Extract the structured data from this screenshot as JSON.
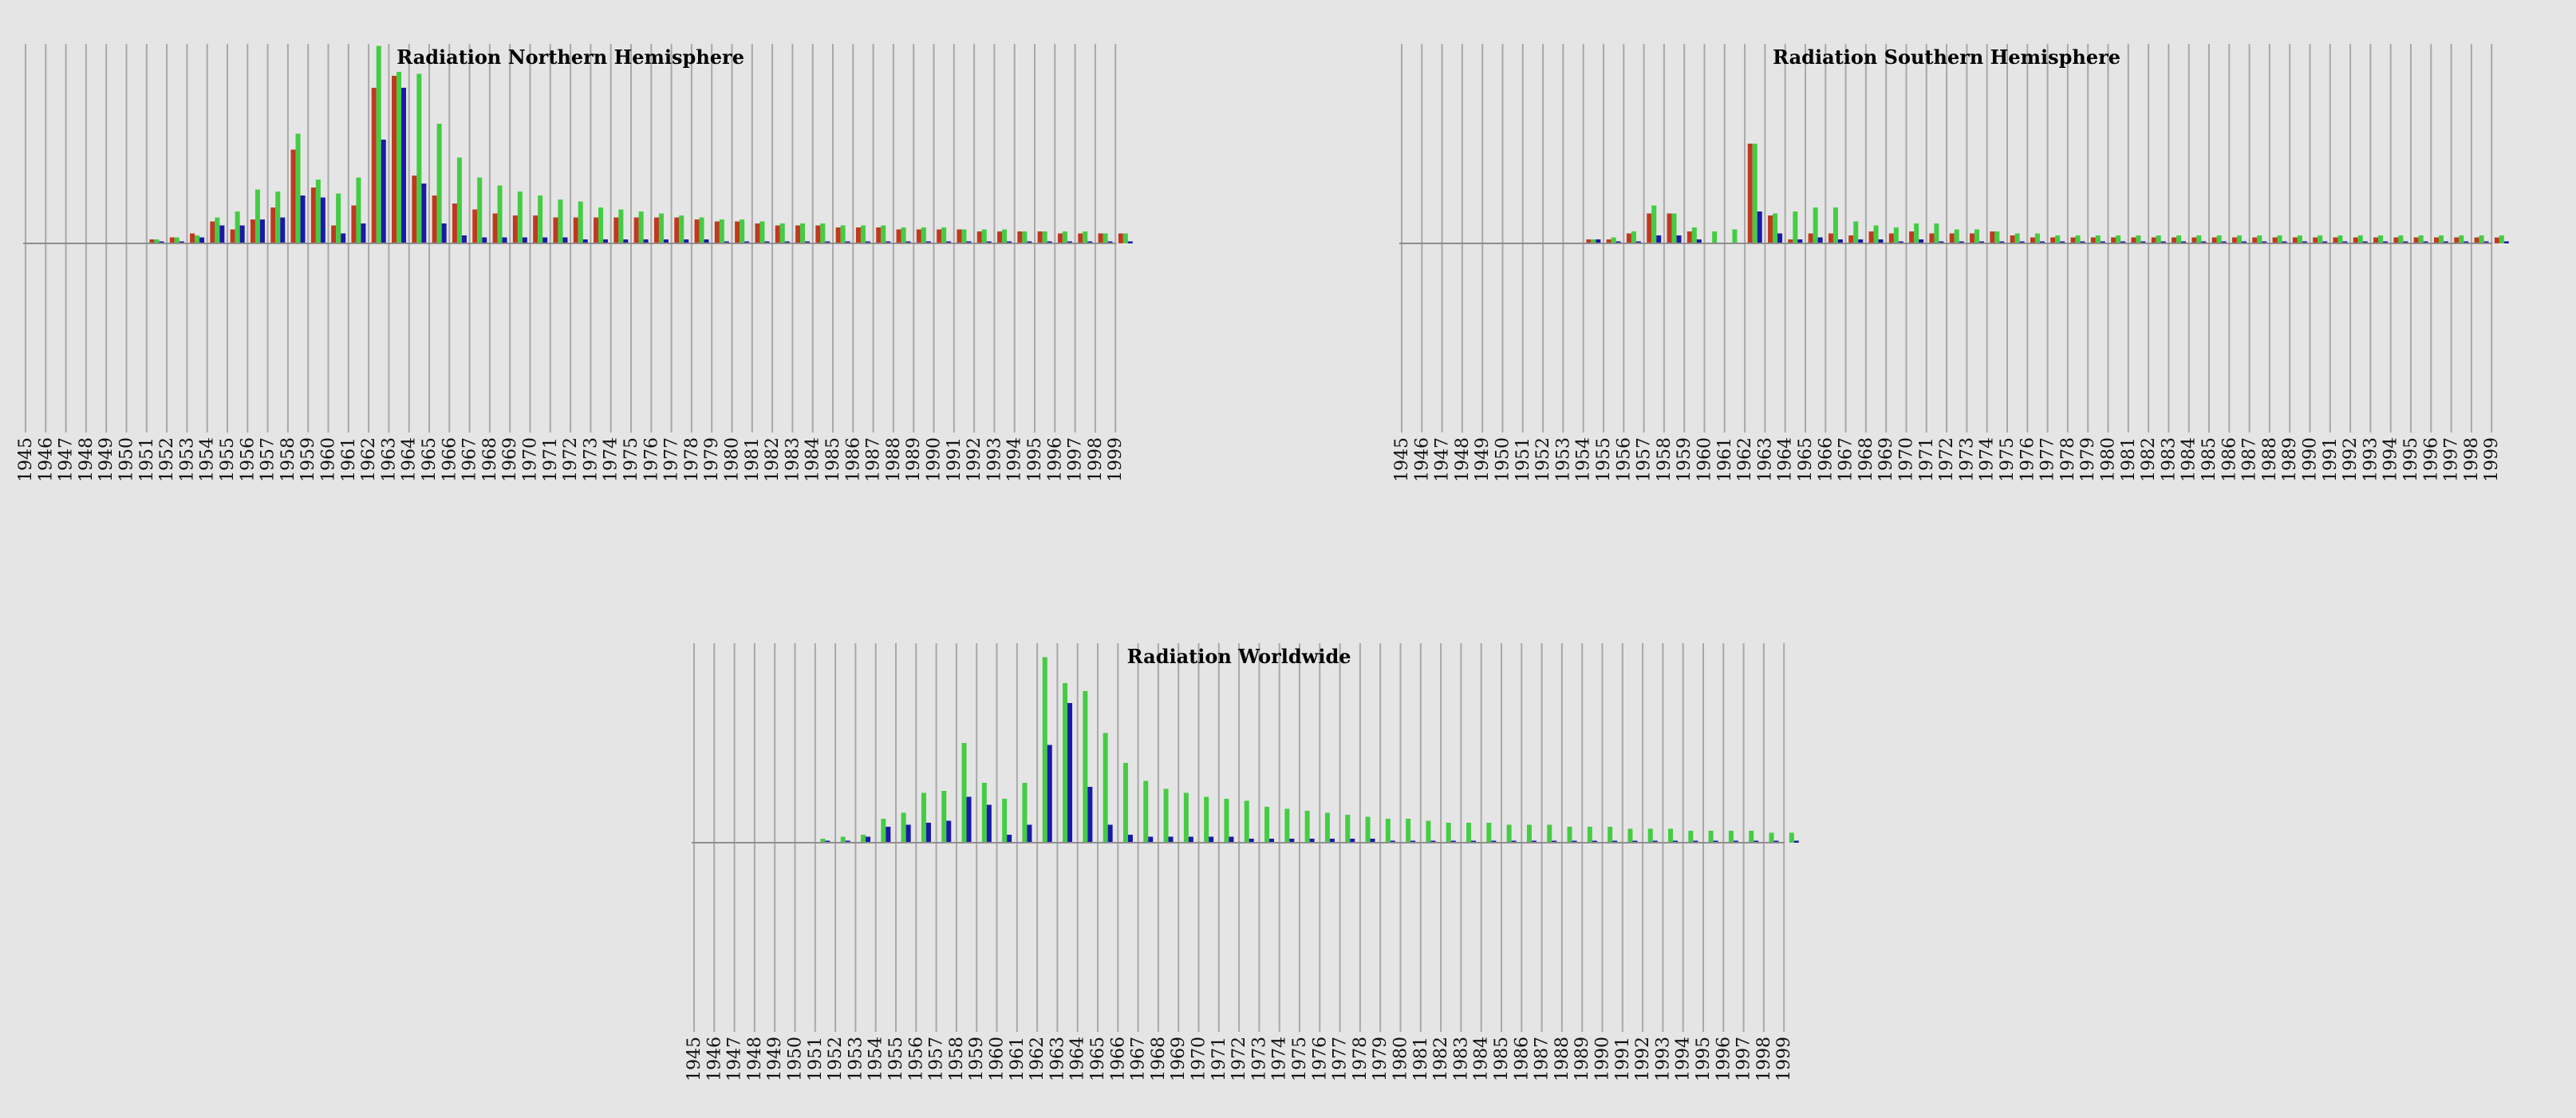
{
  "colors": {
    "background": "#e5e5e5",
    "series_red": "#c0391f",
    "series_green": "#44cc44",
    "series_blue": "#1a1aa8",
    "grid": "#a8a8a8"
  },
  "chart_data": [
    {
      "id": "north",
      "type": "bar",
      "title": "Radiation Northern Hemisphere",
      "xlabel": "",
      "ylabel": "",
      "grid": true,
      "legend": "none",
      "ylim": [
        -100,
        100
      ],
      "categories": [
        "1945",
        "1946",
        "1947",
        "1948",
        "1949",
        "1950",
        "1951",
        "1952",
        "1953",
        "1954",
        "1955",
        "1956",
        "1957",
        "1958",
        "1959",
        "1960",
        "1961",
        "1962",
        "1963",
        "1964",
        "1965",
        "1966",
        "1967",
        "1968",
        "1969",
        "1970",
        "1971",
        "1972",
        "1973",
        "1974",
        "1975",
        "1976",
        "1977",
        "1978",
        "1979",
        "1980",
        "1981",
        "1982",
        "1983",
        "1984",
        "1985",
        "1986",
        "1987",
        "1988",
        "1989",
        "1990",
        "1991",
        "1992",
        "1993",
        "1994",
        "1995",
        "1996",
        "1997",
        "1998",
        "1999"
      ],
      "series": [
        {
          "color": "#c0391f",
          "values": [
            0,
            0,
            0,
            0,
            0,
            0,
            2,
            3,
            5,
            11,
            7,
            12,
            18,
            47,
            28,
            9,
            19,
            78,
            84,
            34,
            24,
            20,
            17,
            15,
            14,
            14,
            13,
            13,
            13,
            13,
            13,
            13,
            13,
            12,
            11,
            11,
            10,
            9,
            9,
            9,
            8,
            8,
            8,
            7,
            7,
            7,
            7,
            6,
            6,
            6,
            6,
            5,
            5,
            5,
            5
          ]
        },
        {
          "color": "#44cc44",
          "values": [
            0,
            0,
            0,
            0,
            0,
            0,
            2,
            3,
            4,
            13,
            16,
            27,
            26,
            55,
            32,
            25,
            33,
            99,
            86,
            85,
            60,
            43,
            33,
            29,
            26,
            24,
            22,
            21,
            18,
            17,
            16,
            15,
            14,
            13,
            12,
            12,
            11,
            10,
            10,
            10,
            9,
            9,
            9,
            8,
            8,
            8,
            7,
            7,
            7,
            6,
            6,
            6,
            6,
            5,
            5
          ]
        },
        {
          "color": "#1a1aa8",
          "values": [
            0,
            0,
            0,
            0,
            0,
            0,
            1,
            1,
            3,
            9,
            9,
            12,
            13,
            24,
            23,
            5,
            10,
            52,
            78,
            30,
            10,
            4,
            3,
            3,
            3,
            3,
            3,
            2,
            2,
            2,
            2,
            2,
            2,
            2,
            1,
            1,
            1,
            1,
            1,
            1,
            1,
            1,
            1,
            1,
            1,
            1,
            1,
            1,
            1,
            1,
            1,
            1,
            1,
            1,
            1
          ]
        }
      ]
    },
    {
      "id": "south",
      "type": "bar",
      "title": "Radiation Southern Hemisphere",
      "xlabel": "",
      "ylabel": "",
      "grid": true,
      "legend": "none",
      "ylim": [
        -100,
        100
      ],
      "categories": [
        "1945",
        "1946",
        "1947",
        "1948",
        "1949",
        "1950",
        "1951",
        "1952",
        "1953",
        "1954",
        "1955",
        "1956",
        "1957",
        "1958",
        "1959",
        "1960",
        "1961",
        "1962",
        "1963",
        "1964",
        "1965",
        "1966",
        "1967",
        "1968",
        "1969",
        "1970",
        "1971",
        "1972",
        "1973",
        "1974",
        "1975",
        "1976",
        "1977",
        "1978",
        "1979",
        "1980",
        "1981",
        "1982",
        "1983",
        "1984",
        "1985",
        "1986",
        "1987",
        "1988",
        "1989",
        "1990",
        "1991",
        "1992",
        "1993",
        "1994",
        "1995",
        "1996",
        "1997",
        "1998",
        "1999"
      ],
      "series": [
        {
          "color": "#c0391f",
          "values": [
            0,
            0,
            0,
            0,
            0,
            0,
            0,
            0,
            0,
            2,
            2,
            5,
            15,
            15,
            6,
            0,
            0,
            50,
            14,
            2,
            5,
            5,
            4,
            6,
            5,
            6,
            5,
            5,
            5,
            6,
            4,
            3,
            3,
            3,
            3,
            3,
            3,
            3,
            3,
            3,
            3,
            3,
            3,
            3,
            3,
            3,
            3,
            3,
            3,
            3,
            3,
            3,
            3,
            3,
            3
          ]
        },
        {
          "color": "#44cc44",
          "values": [
            0,
            0,
            0,
            0,
            0,
            0,
            0,
            0,
            0,
            2,
            3,
            6,
            19,
            15,
            8,
            6,
            7,
            50,
            15,
            16,
            18,
            18,
            11,
            9,
            8,
            10,
            10,
            7,
            7,
            6,
            5,
            5,
            4,
            4,
            4,
            4,
            4,
            4,
            4,
            4,
            4,
            4,
            4,
            4,
            4,
            4,
            4,
            4,
            4,
            4,
            4,
            4,
            4,
            4,
            4
          ]
        },
        {
          "color": "#1a1aa8",
          "values": [
            0,
            0,
            0,
            0,
            0,
            0,
            0,
            0,
            0,
            2,
            1,
            1,
            4,
            4,
            2,
            0,
            0,
            16,
            5,
            2,
            3,
            2,
            2,
            2,
            1,
            2,
            1,
            1,
            1,
            1,
            1,
            1,
            1,
            1,
            1,
            1,
            1,
            1,
            1,
            1,
            1,
            1,
            1,
            1,
            1,
            1,
            1,
            1,
            1,
            1,
            1,
            1,
            1,
            1,
            1
          ]
        }
      ]
    },
    {
      "id": "world",
      "type": "bar",
      "title": "Radiation Worldwide",
      "xlabel": "",
      "ylabel": "",
      "grid": true,
      "legend": "none",
      "ylim": [
        -100,
        100
      ],
      "categories": [
        "1945",
        "1946",
        "1947",
        "1948",
        "1949",
        "1950",
        "1951",
        "1952",
        "1953",
        "1954",
        "1955",
        "1956",
        "1957",
        "1958",
        "1959",
        "1960",
        "1961",
        "1962",
        "1963",
        "1964",
        "1965",
        "1966",
        "1967",
        "1968",
        "1969",
        "1970",
        "1971",
        "1972",
        "1973",
        "1974",
        "1975",
        "1976",
        "1977",
        "1978",
        "1979",
        "1980",
        "1981",
        "1982",
        "1983",
        "1984",
        "1985",
        "1986",
        "1987",
        "1988",
        "1989",
        "1990",
        "1991",
        "1992",
        "1993",
        "1994",
        "1995",
        "1996",
        "1997",
        "1998",
        "1999"
      ],
      "series": [
        {
          "color": "#44cc44",
          "values": [
            0,
            0,
            0,
            0,
            0,
            0,
            2,
            3,
            4,
            12,
            15,
            25,
            26,
            50,
            30,
            22,
            30,
            93,
            80,
            76,
            55,
            40,
            31,
            27,
            25,
            23,
            22,
            21,
            18,
            17,
            16,
            15,
            14,
            13,
            12,
            12,
            11,
            10,
            10,
            10,
            9,
            9,
            9,
            8,
            8,
            8,
            7,
            7,
            7,
            6,
            6,
            6,
            6,
            5,
            5
          ]
        },
        {
          "color": "#1a1aa8",
          "values": [
            0,
            0,
            0,
            0,
            0,
            0,
            1,
            1,
            3,
            8,
            9,
            10,
            11,
            23,
            19,
            4,
            9,
            49,
            70,
            28,
            9,
            4,
            3,
            3,
            3,
            3,
            3,
            2,
            2,
            2,
            2,
            2,
            2,
            2,
            1,
            1,
            1,
            1,
            1,
            1,
            1,
            1,
            1,
            1,
            1,
            1,
            1,
            1,
            1,
            1,
            1,
            1,
            1,
            1,
            1
          ]
        }
      ]
    }
  ]
}
